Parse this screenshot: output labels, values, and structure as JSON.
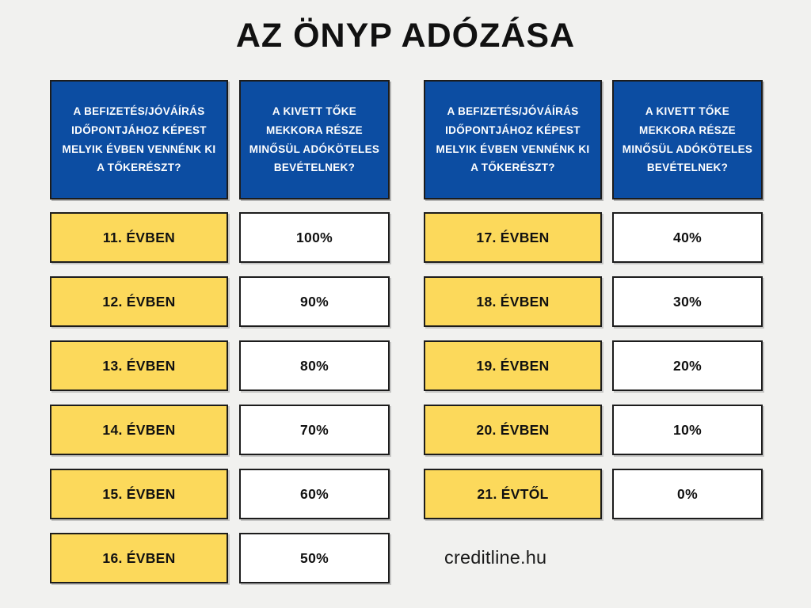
{
  "page": {
    "title": "AZ ÖNYP ADÓZÁSA",
    "footer": "creditline.hu"
  },
  "colors": {
    "blue": "#0C4DA2",
    "yellow": "#FCD95B",
    "white": "#FFFFFF",
    "border": "#1C1C1C",
    "background": "#F1F1EF"
  },
  "headers": {
    "question_year": "A BEFIZETÉS/JÓVÁÍRÁS\nIDŐPONTJÁHOZ KÉPEST\nMELYIK ÉVBEN VENNÉNK KI\nA TŐKERÉSZT?",
    "question_pct": "A KIVETT TŐKE\nMEKKORA RÉSZE\nMINŐSÜL ADÓKÖTELES\nBEVÉTELNEK?"
  },
  "tables": {
    "left": {
      "rows": [
        {
          "year": "11. ÉVBEN",
          "pct": "100%"
        },
        {
          "year": "12. ÉVBEN",
          "pct": "90%"
        },
        {
          "year": "13. ÉVBEN",
          "pct": "80%"
        },
        {
          "year": "14. ÉVBEN",
          "pct": "70%"
        },
        {
          "year": "15. ÉVBEN",
          "pct": "60%"
        },
        {
          "year": "16. ÉVBEN",
          "pct": "50%"
        }
      ]
    },
    "right": {
      "rows": [
        {
          "year": "17. ÉVBEN",
          "pct": "40%"
        },
        {
          "year": "18. ÉVBEN",
          "pct": "30%"
        },
        {
          "year": "19. ÉVBEN",
          "pct": "20%"
        },
        {
          "year": "20. ÉVBEN",
          "pct": "10%"
        },
        {
          "year": "21. ÉVTŐL",
          "pct": "0%"
        }
      ]
    }
  },
  "chart_data": {
    "type": "table",
    "title": "AZ ÖNYP ADÓZÁSA",
    "columns": [
      "A BEFIZETÉS/JÓVÁÍRÁS IDŐPONTJÁHOZ KÉPEST MELYIK ÉVBEN VENNÉNK KI A TŐKERÉSZT?",
      "A KIVETT TŐKE MEKKORA RÉSZE MINŐSÜL ADÓKÖTELES BEVÉTELNEK?"
    ],
    "rows": [
      [
        "11. ÉVBEN",
        "100%"
      ],
      [
        "12. ÉVBEN",
        "90%"
      ],
      [
        "13. ÉVBEN",
        "80%"
      ],
      [
        "14. ÉVBEN",
        "70%"
      ],
      [
        "15. ÉVBEN",
        "60%"
      ],
      [
        "16. ÉVBEN",
        "50%"
      ],
      [
        "17. ÉVBEN",
        "40%"
      ],
      [
        "18. ÉVBEN",
        "30%"
      ],
      [
        "19. ÉVBEN",
        "20%"
      ],
      [
        "20. ÉVBEN",
        "10%"
      ],
      [
        "21. ÉVTŐL",
        "0%"
      ]
    ],
    "annotations": [
      "creditline.hu"
    ]
  }
}
